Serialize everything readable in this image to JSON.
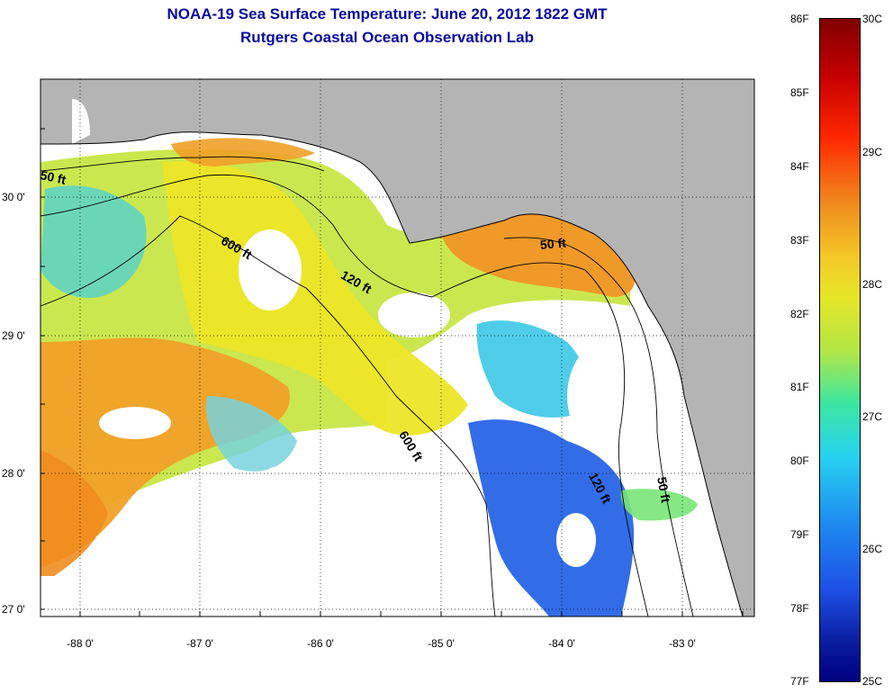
{
  "header": {
    "title": "NOAA-19 Sea Surface Temperature:  June 20, 2012 1822 GMT",
    "subtitle": "Rutgers Coastal Ocean Observation Lab"
  },
  "axes": {
    "lat_labels": [
      "30 0'",
      "29 0'",
      "28 0'",
      "27 0'"
    ],
    "lon_labels": [
      "-88 0'",
      "-87 0'",
      "-86 0'",
      "-85 0'",
      "-84 0'",
      "-83 0'"
    ]
  },
  "contours": {
    "labels": [
      "50 ft",
      "600 ft",
      "120 ft",
      "50 ft",
      "600 ft",
      "120 ft",
      "50 ft"
    ]
  },
  "colorbar": {
    "fahrenheit": [
      "86F",
      "85F",
      "84F",
      "83F",
      "82F",
      "81F",
      "80F",
      "79F",
      "78F",
      "77F"
    ],
    "celsius": [
      "30C",
      "29C",
      "28C",
      "27C",
      "26C",
      "25C"
    ]
  },
  "colors": {
    "land": "#b4b4b4",
    "title": "#0a0aa0",
    "warm": "#f08c1e",
    "mid": "#e6e628",
    "cool": "#3cc8f0",
    "cold": "#1e50e6"
  }
}
